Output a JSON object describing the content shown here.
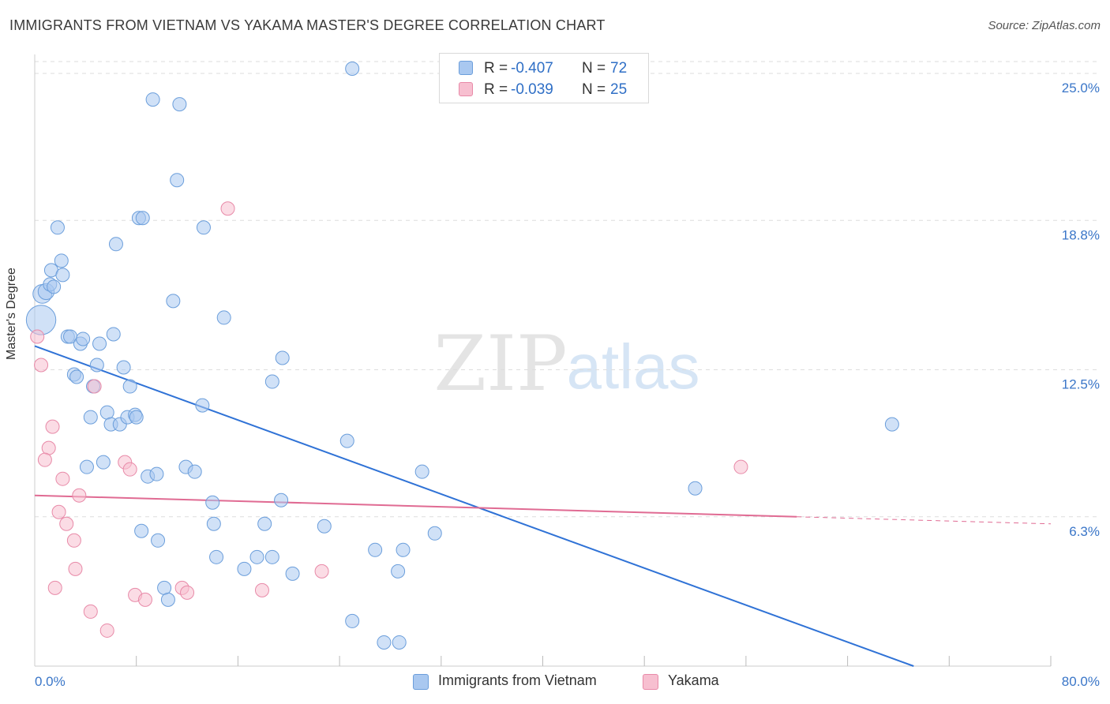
{
  "header": {
    "title": "IMMIGRANTS FROM VIETNAM VS YAKAMA MASTER'S DEGREE CORRELATION CHART",
    "source": "Source: ZipAtlas.com"
  },
  "watermark": {
    "zip": "ZIP",
    "atlas": "atlas"
  },
  "stats": [
    {
      "r_label": "R = ",
      "r_value": "-0.407",
      "n_label": "N = ",
      "n_value": "72"
    },
    {
      "r_label": "R = ",
      "r_value": "-0.039",
      "n_label": "N = ",
      "n_value": "25"
    }
  ],
  "legend": [
    {
      "label": "Immigrants from Vietnam"
    },
    {
      "label": "Yakama"
    }
  ],
  "colors": {
    "blue_fill": "#a9c8f0",
    "blue_stroke": "#6b9edb",
    "blue_line": "#2f72d6",
    "pink_fill": "#f7bfd0",
    "pink_stroke": "#e88aa8",
    "pink_line": "#e06b93",
    "axis_text": "#3a76c8",
    "grid": "#dddddd"
  },
  "chart_data": {
    "type": "scatter",
    "title": "IMMIGRANTS FROM VIETNAM VS YAKAMA MASTER'S DEGREE CORRELATION CHART",
    "xlabel": "",
    "ylabel": "Master's Degree",
    "xlim": [
      0,
      80
    ],
    "ylim": [
      0,
      25.8
    ],
    "x_tick_labels": [
      "0.0%",
      "80.0%"
    ],
    "y_ticks": [
      6.3,
      12.5,
      18.8,
      25.0
    ],
    "y_tick_labels": [
      "6.3%",
      "12.5%",
      "18.8%",
      "25.0%"
    ],
    "grid": true,
    "series": [
      {
        "name": "Immigrants from Vietnam",
        "r": -0.407,
        "n": 72,
        "trend": {
          "x0": 0,
          "y0": 13.5,
          "x1": 69.2,
          "y1": 0
        },
        "points": [
          {
            "x": 0.5,
            "y": 14.6,
            "s": 2.2
          },
          {
            "x": 0.6,
            "y": 15.7,
            "s": 1.4
          },
          {
            "x": 0.9,
            "y": 15.8,
            "s": 1.2
          },
          {
            "x": 1.2,
            "y": 16.1,
            "s": 1.0
          },
          {
            "x": 1.5,
            "y": 16.0,
            "s": 1.0
          },
          {
            "x": 1.3,
            "y": 16.7,
            "s": 1.0
          },
          {
            "x": 2.1,
            "y": 17.1,
            "s": 1.0
          },
          {
            "x": 2.2,
            "y": 16.5,
            "s": 1.0
          },
          {
            "x": 1.8,
            "y": 18.5,
            "s": 1.0
          },
          {
            "x": 2.6,
            "y": 13.9,
            "s": 1.0
          },
          {
            "x": 2.8,
            "y": 13.9,
            "s": 1.0
          },
          {
            "x": 3.6,
            "y": 13.6,
            "s": 1.0
          },
          {
            "x": 3.8,
            "y": 13.8,
            "s": 1.0
          },
          {
            "x": 5.1,
            "y": 13.6,
            "s": 1.0
          },
          {
            "x": 6.2,
            "y": 14.0,
            "s": 1.0
          },
          {
            "x": 3.1,
            "y": 12.3,
            "s": 1.0
          },
          {
            "x": 3.3,
            "y": 12.2,
            "s": 1.0
          },
          {
            "x": 4.9,
            "y": 12.7,
            "s": 1.0
          },
          {
            "x": 7.0,
            "y": 12.6,
            "s": 1.0
          },
          {
            "x": 4.6,
            "y": 11.8,
            "s": 1.0
          },
          {
            "x": 7.5,
            "y": 11.8,
            "s": 1.0
          },
          {
            "x": 4.4,
            "y": 10.5,
            "s": 1.0
          },
          {
            "x": 5.7,
            "y": 10.7,
            "s": 1.0
          },
          {
            "x": 6.0,
            "y": 10.2,
            "s": 1.0
          },
          {
            "x": 6.7,
            "y": 10.2,
            "s": 1.0
          },
          {
            "x": 7.3,
            "y": 10.5,
            "s": 1.0
          },
          {
            "x": 7.9,
            "y": 10.6,
            "s": 1.0
          },
          {
            "x": 8.0,
            "y": 10.5,
            "s": 1.0
          },
          {
            "x": 5.4,
            "y": 8.6,
            "s": 1.0
          },
          {
            "x": 4.1,
            "y": 8.4,
            "s": 1.0
          },
          {
            "x": 8.9,
            "y": 8.0,
            "s": 1.0
          },
          {
            "x": 9.6,
            "y": 8.1,
            "s": 1.0
          },
          {
            "x": 11.9,
            "y": 8.4,
            "s": 1.0
          },
          {
            "x": 12.6,
            "y": 8.2,
            "s": 1.0
          },
          {
            "x": 8.4,
            "y": 5.7,
            "s": 1.0
          },
          {
            "x": 9.7,
            "y": 5.3,
            "s": 1.0
          },
          {
            "x": 10.2,
            "y": 3.3,
            "s": 1.0
          },
          {
            "x": 10.5,
            "y": 2.8,
            "s": 1.0
          },
          {
            "x": 6.4,
            "y": 17.8,
            "s": 1.0
          },
          {
            "x": 8.2,
            "y": 18.9,
            "s": 1.0
          },
          {
            "x": 8.5,
            "y": 18.9,
            "s": 1.0
          },
          {
            "x": 13.3,
            "y": 18.5,
            "s": 1.0
          },
          {
            "x": 11.2,
            "y": 20.5,
            "s": 1.0
          },
          {
            "x": 9.3,
            "y": 23.9,
            "s": 1.0
          },
          {
            "x": 11.4,
            "y": 23.7,
            "s": 1.0
          },
          {
            "x": 25.0,
            "y": 25.2,
            "s": 1.0
          },
          {
            "x": 10.9,
            "y": 15.4,
            "s": 1.0
          },
          {
            "x": 14.9,
            "y": 14.7,
            "s": 1.0
          },
          {
            "x": 13.2,
            "y": 11.0,
            "s": 1.0
          },
          {
            "x": 14.0,
            "y": 6.9,
            "s": 1.0
          },
          {
            "x": 14.1,
            "y": 6.0,
            "s": 1.0
          },
          {
            "x": 14.3,
            "y": 4.6,
            "s": 1.0
          },
          {
            "x": 16.5,
            "y": 4.1,
            "s": 1.0
          },
          {
            "x": 17.5,
            "y": 4.6,
            "s": 1.0
          },
          {
            "x": 18.7,
            "y": 4.6,
            "s": 1.0
          },
          {
            "x": 18.1,
            "y": 6.0,
            "s": 1.0
          },
          {
            "x": 19.4,
            "y": 7.0,
            "s": 1.0
          },
          {
            "x": 20.3,
            "y": 3.9,
            "s": 1.0
          },
          {
            "x": 19.5,
            "y": 13.0,
            "s": 1.0
          },
          {
            "x": 18.7,
            "y": 12.0,
            "s": 1.0
          },
          {
            "x": 22.8,
            "y": 5.9,
            "s": 1.0
          },
          {
            "x": 24.6,
            "y": 9.5,
            "s": 1.0
          },
          {
            "x": 25.0,
            "y": 1.9,
            "s": 1.0
          },
          {
            "x": 26.8,
            "y": 4.9,
            "s": 1.0
          },
          {
            "x": 27.5,
            "y": 1.0,
            "s": 1.0
          },
          {
            "x": 28.6,
            "y": 4.0,
            "s": 1.0
          },
          {
            "x": 28.7,
            "y": 1.0,
            "s": 1.0
          },
          {
            "x": 29.0,
            "y": 4.9,
            "s": 1.0
          },
          {
            "x": 30.5,
            "y": 8.2,
            "s": 1.0
          },
          {
            "x": 31.5,
            "y": 5.6,
            "s": 1.0
          },
          {
            "x": 52.0,
            "y": 7.5,
            "s": 1.0
          },
          {
            "x": 67.5,
            "y": 10.2,
            "s": 1.0
          }
        ]
      },
      {
        "name": "Yakama",
        "r": -0.039,
        "n": 25,
        "trend": {
          "x0": 0,
          "y0": 7.2,
          "x1": 60.0,
          "y1": 6.3,
          "dash_to_x": 80.0,
          "dash_to_y": 6.0
        },
        "points": [
          {
            "x": 0.2,
            "y": 13.9,
            "s": 1.0
          },
          {
            "x": 0.5,
            "y": 12.7,
            "s": 1.0
          },
          {
            "x": 1.4,
            "y": 10.1,
            "s": 1.0
          },
          {
            "x": 1.1,
            "y": 9.2,
            "s": 1.0
          },
          {
            "x": 0.8,
            "y": 8.7,
            "s": 1.0
          },
          {
            "x": 2.2,
            "y": 7.9,
            "s": 1.0
          },
          {
            "x": 1.9,
            "y": 6.5,
            "s": 1.0
          },
          {
            "x": 2.5,
            "y": 6.0,
            "s": 1.0
          },
          {
            "x": 3.1,
            "y": 5.3,
            "s": 1.0
          },
          {
            "x": 3.2,
            "y": 4.1,
            "s": 1.0
          },
          {
            "x": 1.6,
            "y": 3.3,
            "s": 1.0
          },
          {
            "x": 3.5,
            "y": 7.2,
            "s": 1.0
          },
          {
            "x": 4.7,
            "y": 11.8,
            "s": 1.0
          },
          {
            "x": 4.4,
            "y": 2.3,
            "s": 1.0
          },
          {
            "x": 5.7,
            "y": 1.5,
            "s": 1.0
          },
          {
            "x": 7.1,
            "y": 8.6,
            "s": 1.0
          },
          {
            "x": 7.5,
            "y": 8.3,
            "s": 1.0
          },
          {
            "x": 7.9,
            "y": 3.0,
            "s": 1.0
          },
          {
            "x": 8.7,
            "y": 2.8,
            "s": 1.0
          },
          {
            "x": 11.6,
            "y": 3.3,
            "s": 1.0
          },
          {
            "x": 12.0,
            "y": 3.1,
            "s": 1.0
          },
          {
            "x": 15.2,
            "y": 19.3,
            "s": 1.0
          },
          {
            "x": 17.9,
            "y": 3.2,
            "s": 1.0
          },
          {
            "x": 22.6,
            "y": 4.0,
            "s": 1.0
          },
          {
            "x": 55.6,
            "y": 8.4,
            "s": 1.0
          }
        ]
      }
    ]
  }
}
